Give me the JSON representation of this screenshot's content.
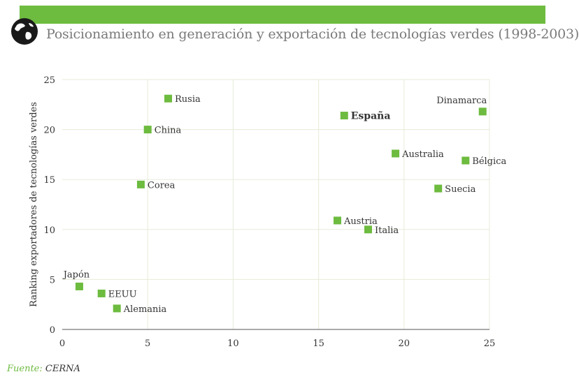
{
  "header": {
    "title": "Posicionamiento en generación y exportación de tecnologías verdes (1998-2003)"
  },
  "source": {
    "label": "Fuente:",
    "value": "CERNA"
  },
  "colors": {
    "accent": "#6dbb3f",
    "marker": "#6dbb3f",
    "grid": "#e6ecd8",
    "axis": "#555555"
  },
  "chart_data": {
    "type": "scatter",
    "title": "Posicionamiento en generación y exportación de tecnologías verdes (1998-2003)",
    "xlabel": "",
    "ylabel": "Ranking exportadores de tecnologías verdes",
    "xlim": [
      0,
      25
    ],
    "ylim": [
      0,
      25
    ],
    "xticks": [
      0,
      5,
      10,
      15,
      20,
      25
    ],
    "yticks": [
      0,
      5,
      10,
      15,
      20,
      25
    ],
    "grid": true,
    "points": [
      {
        "label": "Rusia",
        "x": 6.2,
        "y": 23.1,
        "label_pos": "right",
        "bold": false
      },
      {
        "label": "China",
        "x": 5.0,
        "y": 20.0,
        "label_pos": "right",
        "bold": false
      },
      {
        "label": "Corea",
        "x": 4.6,
        "y": 14.5,
        "label_pos": "right",
        "bold": false
      },
      {
        "label": "Japón",
        "x": 1.0,
        "y": 4.3,
        "label_pos": "above",
        "bold": false
      },
      {
        "label": "EEUU",
        "x": 2.3,
        "y": 3.6,
        "label_pos": "right",
        "bold": false
      },
      {
        "label": "Alemania",
        "x": 3.2,
        "y": 2.1,
        "label_pos": "right",
        "bold": false
      },
      {
        "label": "España",
        "x": 16.5,
        "y": 21.4,
        "label_pos": "right",
        "bold": true
      },
      {
        "label": "Dinamarca",
        "x": 24.6,
        "y": 21.8,
        "label_pos": "above-left",
        "bold": false
      },
      {
        "label": "Australia",
        "x": 19.5,
        "y": 17.6,
        "label_pos": "right",
        "bold": false
      },
      {
        "label": "Bélgica",
        "x": 23.6,
        "y": 16.9,
        "label_pos": "right",
        "bold": false
      },
      {
        "label": "Suecia",
        "x": 22.0,
        "y": 14.1,
        "label_pos": "right",
        "bold": false
      },
      {
        "label": "Austria",
        "x": 16.1,
        "y": 10.9,
        "label_pos": "right",
        "bold": false
      },
      {
        "label": "Italia",
        "x": 17.9,
        "y": 10.0,
        "label_pos": "right",
        "bold": false
      }
    ]
  }
}
